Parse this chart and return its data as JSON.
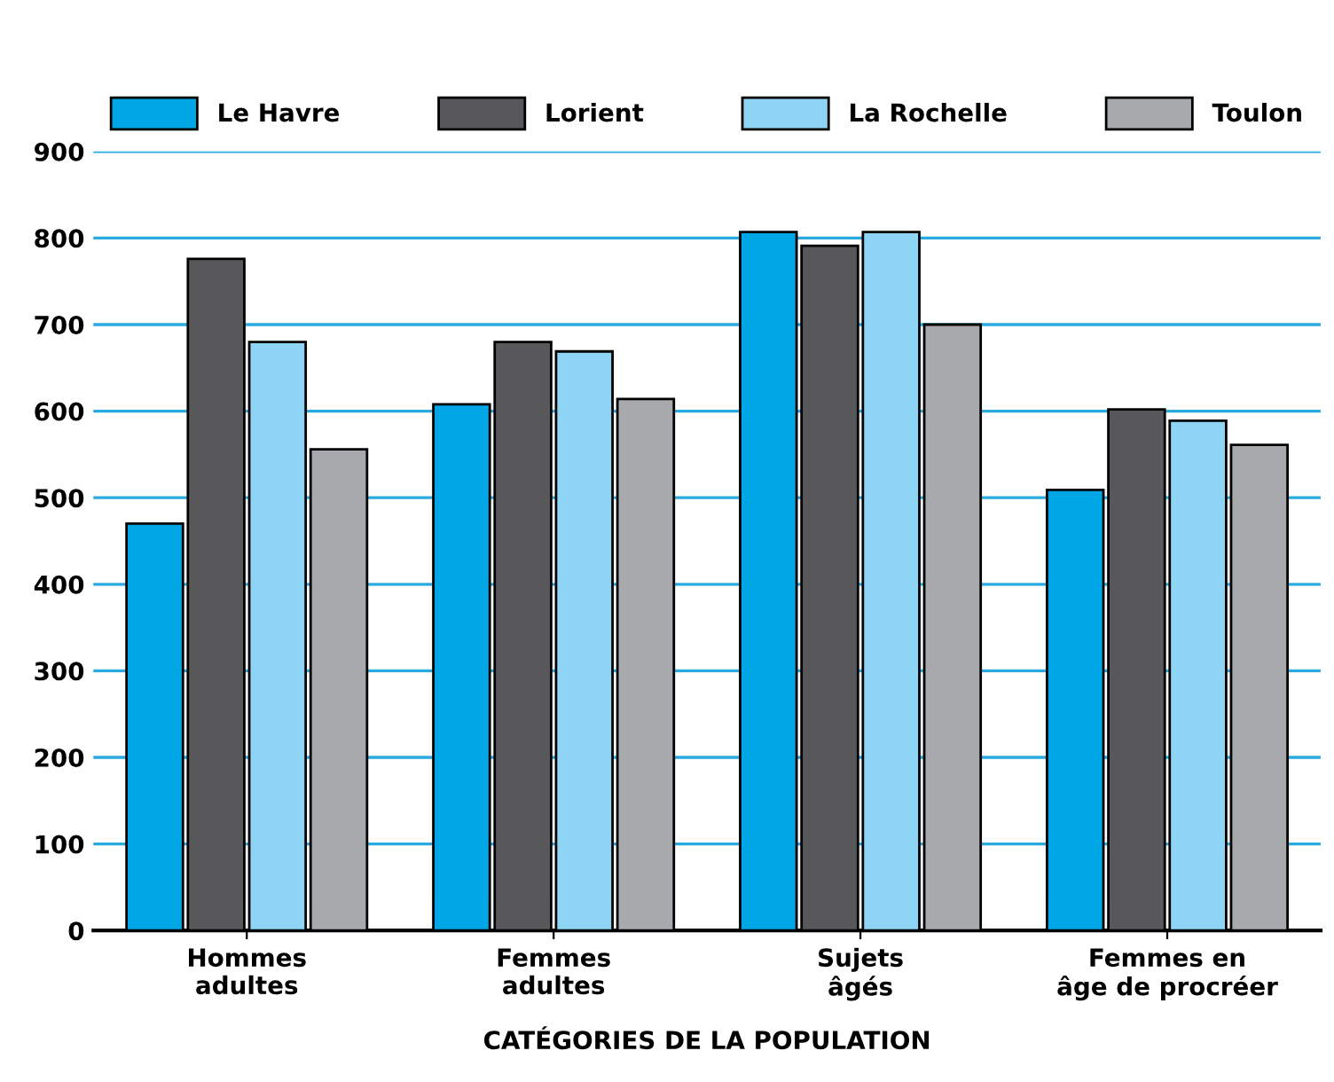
{
  "chart_data": {
    "type": "bar",
    "xlabel": "CATÉGORIES DE LA POPULATION",
    "categories": [
      "Hommes\nadultes",
      "Femmes\nadultes",
      "Sujets\nâgés",
      "Femmes en\nâge de procréer"
    ],
    "series": [
      {
        "name": "Le Havre",
        "color": "#00a6e6",
        "values": [
          470,
          608,
          807,
          509
        ]
      },
      {
        "name": "Lorient",
        "color": "#58585a",
        "values": [
          776,
          680,
          791,
          602
        ]
      },
      {
        "name": "La Rochelle",
        "color": "#8ed4f5",
        "values": [
          680,
          669,
          807,
          589
        ]
      },
      {
        "name": "Toulon",
        "color": "#a7a9ac",
        "values": [
          556,
          614,
          700,
          561
        ]
      }
    ],
    "ylim": [
      0,
      900
    ],
    "yticks": [
      0,
      100,
      200,
      300,
      400,
      500,
      600,
      700,
      800,
      900
    ],
    "grid": "y",
    "legend": "top"
  }
}
